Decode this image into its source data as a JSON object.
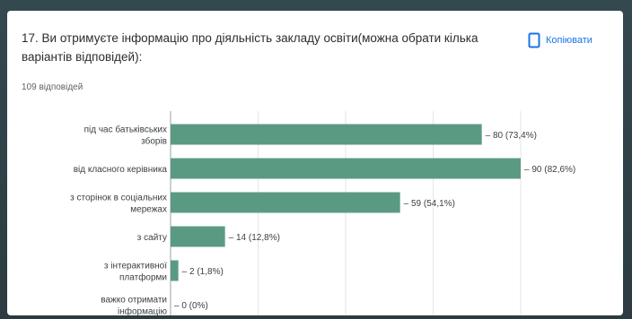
{
  "question": {
    "title": "17. Ви отримуєте інформацію про діяльність закладу освіти(можна обрати кілька варіантів відповідей):",
    "responses": "109 відповідей",
    "copy_label": "Копіювати"
  },
  "colors": {
    "bar": "#5b9a82",
    "accent": "#1a73e8"
  },
  "icons": {
    "copy": "copy-icon"
  },
  "chart_data": {
    "type": "bar",
    "orientation": "horizontal",
    "categories": [
      "під час батьківських зборів",
      "від класного керівника",
      "з сторінок в соціальних мережах",
      "з сайту",
      "з інтерактивної платформи",
      "важко отримати інформацію"
    ],
    "values": [
      80,
      90,
      59,
      14,
      2,
      0
    ],
    "labels": [
      "80 (73,4%)",
      "90 (82,6%)",
      "59 (54,1%)",
      "14 (12,8%)",
      "2 (1,8%)",
      "0 (0%)"
    ],
    "xlim": [
      0,
      90
    ],
    "grid": true
  }
}
